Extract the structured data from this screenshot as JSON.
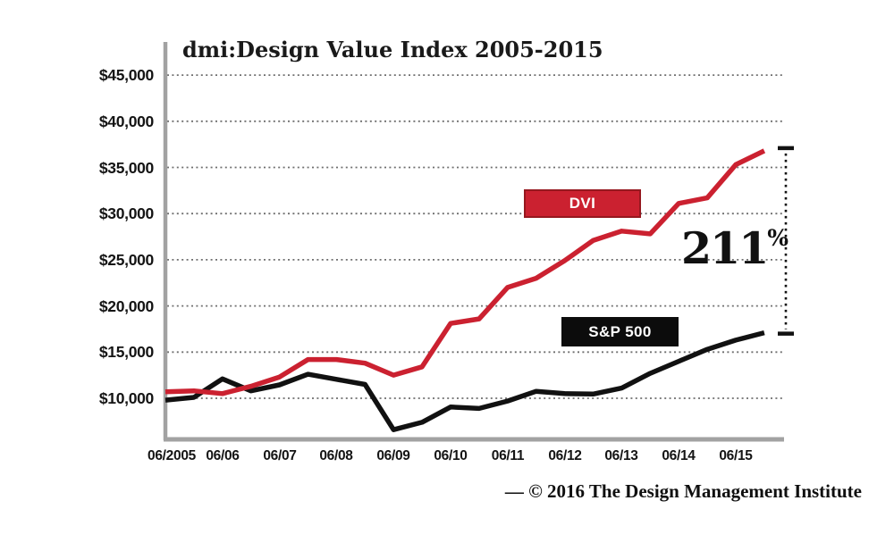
{
  "chart": {
    "title": "dmi:Design Value Index 2005-2015",
    "legend": {
      "dvi_label": "DVI",
      "sp500_label": "S&P 500"
    },
    "annotation": {
      "value": "211",
      "unit": "%"
    },
    "footer": "— © 2016 The Design Management Institute",
    "colors": {
      "dvi_red": "#cb2130",
      "dvi_red_border": "#96181f",
      "sp500_black": "#111111",
      "axis_gray": "#a2a2a2",
      "grid_dot_gray": "#6f6f6f"
    }
  },
  "chart_data": {
    "type": "line",
    "title": "dmi:Design Value Index 2005-2015",
    "xlabel": "",
    "ylabel": "",
    "x_tick_labels": [
      "06/2005",
      "06/06",
      "06/07",
      "06/08",
      "06/09",
      "06/10",
      "06/11",
      "06/12",
      "06/13",
      "06/14",
      "06/15"
    ],
    "y_ticks": [
      45000,
      40000,
      35000,
      30000,
      25000,
      20000,
      15000,
      10000
    ],
    "y_tick_labels": [
      "$45,000",
      "$40,000",
      "$35,000",
      "$30,000",
      "$25,000",
      "$20,000",
      "$15,000",
      "$10,000"
    ],
    "x": [
      "06/05",
      "12/05",
      "06/06",
      "12/06",
      "06/07",
      "12/07",
      "06/08",
      "12/08",
      "06/09",
      "12/09",
      "06/10",
      "12/10",
      "06/11",
      "12/11",
      "06/12",
      "12/12",
      "06/13",
      "12/13",
      "06/14",
      "12/14",
      "06/15",
      "12/15"
    ],
    "series": [
      {
        "name": "S&P 500",
        "color": "#111111",
        "values": [
          9800,
          10100,
          12100,
          10800,
          11450,
          12600,
          12050,
          11500,
          6600,
          7400,
          9050,
          8900,
          9700,
          10750,
          10500,
          10450,
          11100,
          12700,
          14000,
          15300,
          16300,
          17100
        ]
      },
      {
        "name": "DVI",
        "color": "#cb2130",
        "values": [
          10700,
          10800,
          10500,
          11300,
          12300,
          14200,
          14200,
          13800,
          12500,
          13400,
          18100,
          18600,
          22000,
          23000,
          24900,
          27100,
          28100,
          27800,
          31100,
          31700,
          35300,
          36800
        ]
      }
    ],
    "annotation": "211% gap between DVI and S&P 500 at end of period",
    "ylim": [
      5500,
      48500
    ],
    "grid": "horizontal dotted gridlines at each $5,000 tick",
    "legend_position": "floating filled boxes inside plot (DVI red box, S&P 500 black box)"
  }
}
